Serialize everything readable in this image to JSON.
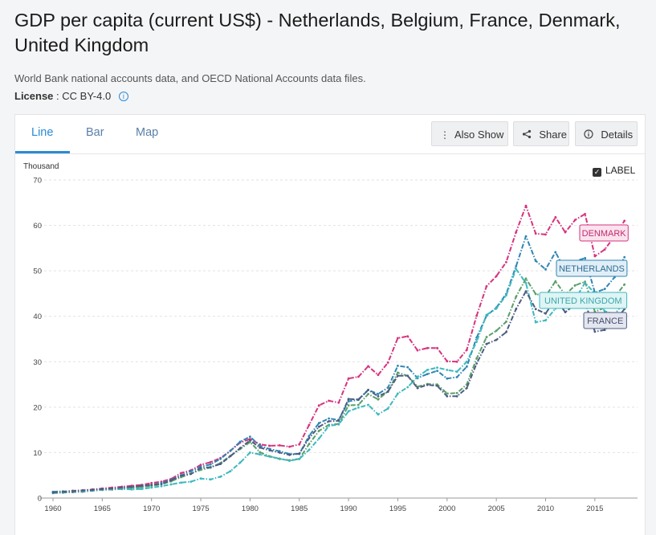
{
  "page": {
    "title": "GDP per capita (current US$) - Netherlands, Belgium, France, Denmark, United Kingdom",
    "source": "World Bank national accounts data, and OECD National Accounts data files.",
    "license_label": "License",
    "license_value": ": CC BY-4.0",
    "info_icon": "i"
  },
  "tabs": [
    {
      "label": "Line",
      "active": true
    },
    {
      "label": "Bar",
      "active": false
    },
    {
      "label": "Map",
      "active": false
    }
  ],
  "toolbar": {
    "also_show": "Also Show",
    "share": "Share",
    "details": "Details"
  },
  "label_toggle": {
    "label": "LABEL",
    "checked": true
  },
  "chart_data": {
    "type": "line",
    "ylabel": "Thousand",
    "ylim": [
      0,
      70
    ],
    "yticks": [
      0,
      10,
      20,
      30,
      40,
      50,
      60,
      70
    ],
    "xlim": [
      1960,
      2018
    ],
    "xticks": [
      1960,
      1965,
      1970,
      1975,
      1980,
      1985,
      1990,
      1995,
      2000,
      2005,
      2010,
      2015
    ],
    "grid": true,
    "x": [
      1960,
      1961,
      1962,
      1963,
      1964,
      1965,
      1966,
      1967,
      1968,
      1969,
      1970,
      1971,
      1972,
      1973,
      1974,
      1975,
      1976,
      1977,
      1978,
      1979,
      1980,
      1981,
      1982,
      1983,
      1984,
      1985,
      1986,
      1987,
      1988,
      1989,
      1990,
      1991,
      1992,
      1993,
      1994,
      1995,
      1996,
      1997,
      1998,
      1999,
      2000,
      2001,
      2002,
      2003,
      2004,
      2005,
      2006,
      2007,
      2008,
      2009,
      2010,
      2011,
      2012,
      2013,
      2014,
      2015,
      2016,
      2017,
      2018
    ],
    "series": [
      {
        "name": "DENMARK",
        "color": "#d6337f",
        "label_bg": "#fbe3ee",
        "label_color": "#c22a6f",
        "values": [
          1.3,
          1.4,
          1.6,
          1.7,
          1.9,
          2.1,
          2.3,
          2.5,
          2.7,
          2.9,
          3.3,
          3.6,
          4.2,
          5.5,
          6.1,
          7.3,
          7.9,
          8.8,
          10.4,
          12.2,
          13.0,
          11.8,
          11.5,
          11.6,
          11.3,
          11.8,
          16.1,
          20.4,
          21.4,
          21.0,
          26.3,
          26.7,
          29.0,
          27.1,
          29.8,
          35.2,
          35.6,
          32.5,
          33.0,
          33.0,
          30.1,
          30.0,
          32.6,
          40.1,
          46.6,
          48.8,
          51.9,
          58.5,
          64.3,
          58.2,
          58.0,
          61.8,
          58.5,
          61.2,
          62.5,
          53.2,
          54.7,
          57.6,
          61.0
        ]
      },
      {
        "name": "NETHERLANDS",
        "color": "#2f86b3",
        "label_bg": "#e2eef7",
        "label_color": "#2a6d96",
        "values": [
          1.1,
          1.2,
          1.3,
          1.4,
          1.6,
          1.8,
          1.9,
          2.1,
          2.3,
          2.6,
          2.9,
          3.3,
          4.0,
          5.0,
          5.9,
          6.9,
          7.4,
          8.6,
          10.4,
          12.4,
          13.5,
          11.5,
          10.8,
          10.3,
          9.7,
          9.7,
          13.7,
          16.5,
          17.5,
          17.2,
          21.3,
          21.6,
          23.8,
          22.9,
          24.3,
          29.1,
          28.8,
          26.4,
          27.3,
          28.0,
          26.3,
          26.6,
          28.9,
          35.3,
          40.1,
          41.9,
          44.9,
          51.0,
          57.6,
          52.2,
          50.3,
          54.1,
          50.1,
          52.1,
          52.8,
          45.2,
          46.0,
          48.6,
          53.0
        ]
      },
      {
        "name": "BELGIUM",
        "color": "#5b9e6a",
        "label_bg": "#e3f1e6",
        "label_color": "#3f7a4d",
        "values": [
          1.3,
          1.3,
          1.4,
          1.5,
          1.7,
          1.8,
          1.9,
          2.0,
          2.2,
          2.4,
          2.7,
          3.0,
          3.7,
          4.6,
          5.4,
          6.2,
          6.7,
          7.7,
          9.3,
          10.8,
          12.3,
          10.1,
          9.2,
          8.6,
          8.3,
          8.6,
          11.9,
          14.8,
          16.1,
          16.3,
          20.4,
          20.5,
          22.9,
          21.7,
          23.5,
          27.6,
          26.9,
          24.5,
          25.1,
          25.0,
          23.0,
          23.1,
          25.0,
          30.7,
          35.4,
          36.8,
          38.8,
          44.3,
          48.3,
          44.9,
          44.4,
          47.7,
          44.7,
          46.8,
          47.6,
          41.0,
          41.9,
          44.2,
          47.0
        ]
      },
      {
        "name": "UNITED KINGDOM",
        "color": "#3db8bf",
        "label_bg": "#dff4f4",
        "label_color": "#3aa7ad",
        "values": [
          1.4,
          1.5,
          1.5,
          1.6,
          1.7,
          1.9,
          2.0,
          2.0,
          1.9,
          2.0,
          2.3,
          2.6,
          3.0,
          3.4,
          3.6,
          4.3,
          4.1,
          4.7,
          5.9,
          7.8,
          10.0,
          9.6,
          9.1,
          8.7,
          8.2,
          8.6,
          10.6,
          13.1,
          15.9,
          16.2,
          19.1,
          19.9,
          20.5,
          18.4,
          19.7,
          23.0,
          24.4,
          26.7,
          28.2,
          28.7,
          28.2,
          27.8,
          30.0,
          34.4,
          40.3,
          41.7,
          44.6,
          50.4,
          47.3,
          38.7,
          39.1,
          41.7,
          42.7,
          43.7,
          47.4,
          45.0,
          41.1,
          40.5,
          43.0
        ]
      },
      {
        "name": "FRANCE",
        "color": "#4d5d82",
        "label_bg": "#e4e6ef",
        "label_color": "#434f70",
        "values": [
          1.3,
          1.4,
          1.5,
          1.7,
          1.8,
          2.0,
          2.1,
          2.3,
          2.5,
          2.7,
          2.9,
          3.1,
          3.9,
          4.9,
          5.3,
          6.6,
          6.8,
          7.5,
          9.2,
          11.0,
          12.7,
          11.1,
          10.5,
          10.0,
          9.5,
          9.8,
          13.2,
          15.7,
          16.9,
          17.0,
          21.8,
          21.7,
          23.8,
          22.4,
          23.4,
          26.9,
          26.9,
          24.2,
          24.9,
          24.7,
          22.4,
          22.4,
          24.2,
          29.6,
          33.9,
          34.8,
          36.5,
          41.6,
          45.5,
          41.6,
          40.6,
          43.8,
          40.9,
          42.6,
          43.1,
          36.6,
          37.0,
          38.8,
          41.6
        ]
      }
    ],
    "labels_shown": [
      "DENMARK",
      "NETHERLANDS",
      "UNITED KINGDOM",
      "FRANCE"
    ]
  }
}
